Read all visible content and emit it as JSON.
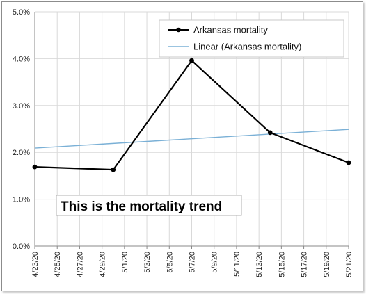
{
  "chart_data": {
    "type": "line",
    "title": "",
    "xlabel": "",
    "ylabel": "",
    "x_ticks": [
      "4/23/20",
      "4/25/20",
      "4/27/20",
      "4/29/20",
      "5/1/20",
      "5/3/20",
      "5/5/20",
      "5/7/20",
      "5/9/20",
      "5/11/20",
      "5/13/20",
      "5/15/20",
      "5/17/20",
      "5/19/20",
      "5/21/20"
    ],
    "xlim": [
      "4/23/20",
      "5/21/20"
    ],
    "y_ticks": [
      "0.0%",
      "1.0%",
      "2.0%",
      "3.0%",
      "4.0%",
      "5.0%"
    ],
    "ylim": [
      0,
      5
    ],
    "grid": true,
    "legend_position": "top-right",
    "series": [
      {
        "name": "Arkansas mortality",
        "color": "#000000",
        "marker": "circle",
        "points": [
          {
            "x": "4/23/20",
            "y": 1.69
          },
          {
            "x": "4/30/20",
            "y": 1.63
          },
          {
            "x": "5/7/20",
            "y": 3.96
          },
          {
            "x": "5/14/20",
            "y": 2.42
          },
          {
            "x": "5/21/20",
            "y": 1.78
          }
        ]
      },
      {
        "name": "Linear (Arkansas mortality)",
        "color": "#7ab0d6",
        "marker": "none",
        "points": [
          {
            "x": "4/23/20",
            "y": 2.09
          },
          {
            "x": "5/21/20",
            "y": 2.49
          }
        ]
      }
    ],
    "annotation": "This is the mortality trend"
  }
}
